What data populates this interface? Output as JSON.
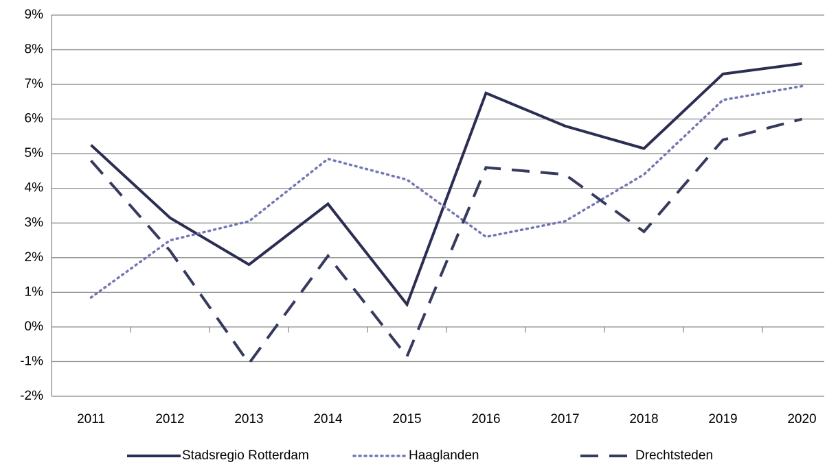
{
  "chart_data": {
    "type": "line",
    "categories": [
      "2011",
      "2012",
      "2013",
      "2014",
      "2015",
      "2016",
      "2017",
      "2018",
      "2019",
      "2020"
    ],
    "series": [
      {
        "name": "Stadsregio Rotterdam",
        "color": "#2b2d52",
        "dash": "solid",
        "values": [
          5.25,
          3.15,
          1.8,
          3.55,
          0.65,
          6.75,
          5.8,
          5.15,
          7.3,
          7.6
        ]
      },
      {
        "name": "Haaglanden",
        "color": "#7276b4",
        "dash": "dotted",
        "values": [
          0.85,
          2.5,
          3.05,
          4.85,
          4.25,
          2.6,
          3.05,
          4.4,
          6.55,
          6.95
        ]
      },
      {
        "name": "Drechtsteden",
        "color": "#363a5e",
        "dash": "dashed",
        "values": [
          4.8,
          2.2,
          -1.05,
          2.05,
          -0.85,
          4.6,
          4.4,
          2.75,
          5.4,
          6.0
        ]
      }
    ],
    "ylim": [
      -2,
      9
    ],
    "yticks": [
      {
        "value": -2,
        "label": "-2%"
      },
      {
        "value": -1,
        "label": "-1%"
      },
      {
        "value": 0,
        "label": "0%"
      },
      {
        "value": 1,
        "label": "1%"
      },
      {
        "value": 2,
        "label": "2%"
      },
      {
        "value": 3,
        "label": "3%"
      },
      {
        "value": 4,
        "label": "4%"
      },
      {
        "value": 5,
        "label": "5%"
      },
      {
        "value": 6,
        "label": "6%"
      },
      {
        "value": 7,
        "label": "7%"
      },
      {
        "value": 8,
        "label": "8%"
      },
      {
        "value": 9,
        "label": "9%"
      }
    ],
    "grid": true,
    "legend": "bottom"
  }
}
